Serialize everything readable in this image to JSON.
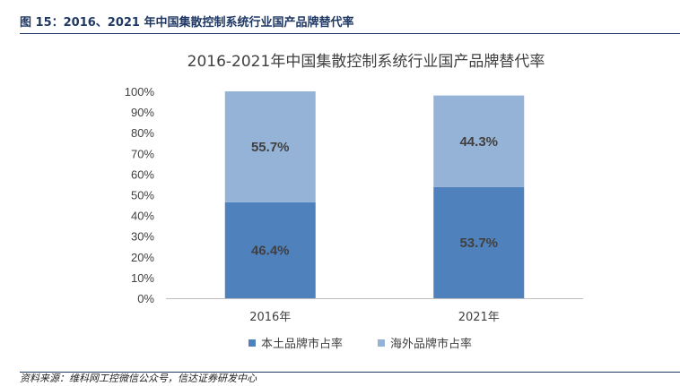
{
  "header": {
    "figure_title": "图 15：2016、2021 年中国集散控制系统行业国产品牌替代率"
  },
  "footer": {
    "source": "资料来源：维科网工控微信公众号，信达证券研发中心"
  },
  "chart_data": {
    "type": "bar",
    "stacked": true,
    "percent": true,
    "title": "2016-2021年中国集散控制系统行业国产品牌替代率",
    "categories": [
      "2016年",
      "2021年"
    ],
    "series": [
      {
        "name": "本土品牌市占率",
        "values": [
          46.4,
          53.7
        ],
        "labels": [
          "46.4%",
          "53.7%"
        ],
        "color": "#4f81bd"
      },
      {
        "name": "海外品牌市占率",
        "values": [
          55.7,
          44.3
        ],
        "labels": [
          "55.7%",
          "44.3%"
        ],
        "color": "#95b3d7"
      }
    ],
    "ylim": [
      0,
      100
    ],
    "yticks": [
      "0%",
      "10%",
      "20%",
      "30%",
      "40%",
      "50%",
      "60%",
      "70%",
      "80%",
      "90%",
      "100%"
    ],
    "legend_position": "bottom",
    "grid": false
  }
}
